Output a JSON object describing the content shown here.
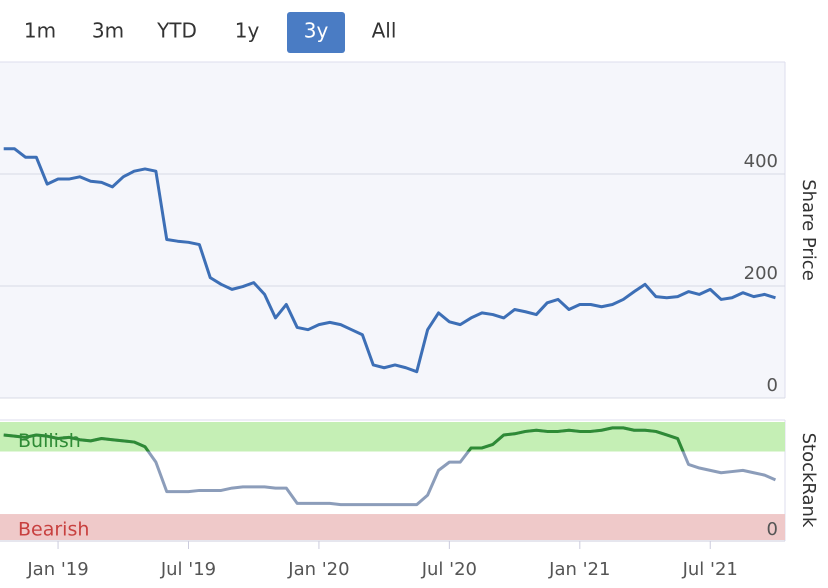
{
  "range_buttons": [
    "1m",
    "3m",
    "YTD",
    "1y",
    "3y",
    "All"
  ],
  "selected_range": 4,
  "chart_data": {
    "type": "line",
    "categories": [
      null,
      null,
      null,
      null,
      null,
      "Jan '19",
      null,
      null,
      null,
      null,
      null,
      null,
      null,
      null,
      null,
      null,
      null,
      "Jul '19",
      null,
      null,
      null,
      null,
      null,
      null,
      null,
      null,
      null,
      null,
      null,
      "Jan '20",
      null,
      null,
      null,
      null,
      null,
      null,
      null,
      null,
      null,
      null,
      null,
      "Jul '20",
      null,
      null,
      null,
      null,
      null,
      null,
      null,
      null,
      null,
      null,
      null,
      "Jan '21",
      null,
      null,
      null,
      null,
      null,
      null,
      null,
      null,
      null,
      null,
      null,
      "Jul '21",
      null,
      null,
      null,
      null,
      null,
      null
    ],
    "series": [
      {
        "name": "Share Price",
        "color": "#3d6fb6",
        "values": [
          445,
          445,
          430,
          430,
          382,
          391,
          391,
          395,
          387,
          385,
          377,
          395,
          405,
          409,
          405,
          283,
          280,
          278,
          274,
          215,
          203,
          194,
          199,
          206,
          185,
          143,
          167,
          126,
          122,
          131,
          135,
          131,
          122,
          113,
          59,
          54,
          59,
          54,
          47,
          122,
          152,
          136,
          131,
          143,
          152,
          149,
          143,
          158,
          154,
          149,
          170,
          176,
          158,
          167,
          167,
          163,
          167,
          176,
          190,
          203,
          181,
          179,
          181,
          190,
          185,
          194,
          176,
          179,
          188,
          181,
          185,
          179
        ]
      },
      {
        "name": "StockRank",
        "color": "#8c9dba",
        "axis": "y2",
        "values": [
          89,
          88,
          87,
          89,
          88,
          86,
          87,
          85,
          84,
          86,
          85,
          84,
          83,
          79,
          66,
          41,
          41,
          41,
          42,
          42,
          42,
          44,
          45,
          45,
          45,
          44,
          44,
          31,
          31,
          31,
          31,
          30,
          30,
          30,
          30,
          30,
          30,
          30,
          30,
          38,
          59,
          66,
          66,
          78,
          78,
          81,
          89,
          90,
          92,
          93,
          92,
          92,
          93,
          92,
          92,
          93,
          95,
          95,
          93,
          93,
          92,
          89,
          86,
          64,
          61,
          59,
          57,
          58,
          59,
          57,
          55,
          51
        ]
      }
    ],
    "ylim": [
      0,
      600
    ],
    "yticks": [
      0,
      200,
      400
    ],
    "grid": true,
    "y2lim": [
      0,
      100
    ],
    "y2ticks": [
      0
    ],
    "bands": [
      {
        "label": "Bullish",
        "range": [
          75,
          100
        ],
        "color": "#c5efb5",
        "text_color": "#2e8b35"
      },
      {
        "label": "Bearish",
        "range": [
          0,
          22
        ],
        "color": "#efc9c9",
        "text_color": "#c8403f"
      }
    ]
  }
}
